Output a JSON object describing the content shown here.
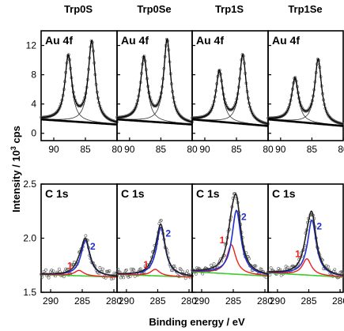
{
  "figure": {
    "columns": [
      "Trp0S",
      "Trp0Se",
      "Trp1S",
      "Trp1Se"
    ],
    "ylabel_main": "Intensity / 10",
    "ylabel_sup": "3",
    "ylabel_unit": " cps",
    "xlabel": "Binding energy / eV"
  },
  "chart_data": [
    {
      "type": "line",
      "title": "Au 4f",
      "xlabel": "Binding energy / eV",
      "ylabel": "Intensity / 10^3 cps",
      "x_reversed": true,
      "xlim": [
        80,
        92
      ],
      "ylim": [
        -1,
        14
      ],
      "xticks": [
        90,
        85,
        80
      ],
      "yticks": [
        0,
        4,
        8,
        12
      ],
      "ytick_labels": [
        "0",
        "4",
        "8",
        "12"
      ],
      "panels": [
        {
          "column": "Trp0S",
          "label": "Au 4f",
          "background": {
            "left": 1.9,
            "right": 1.2
          },
          "peaks": [
            {
              "center": 87.7,
              "height": 8.8
            },
            {
              "center": 84.0,
              "height": 11.0
            }
          ]
        },
        {
          "column": "Trp0Se",
          "label": "Au 4f",
          "background": {
            "left": 1.9,
            "right": 1.2
          },
          "peaks": [
            {
              "center": 87.7,
              "height": 8.6
            },
            {
              "center": 84.0,
              "height": 11.2
            }
          ]
        },
        {
          "column": "Trp1S",
          "label": "Au 4f",
          "background": {
            "left": 1.9,
            "right": 1.0
          },
          "peaks": [
            {
              "center": 87.7,
              "height": 6.8
            },
            {
              "center": 84.0,
              "height": 9.3
            }
          ]
        },
        {
          "column": "Trp1Se",
          "label": "Au 4f",
          "background": {
            "left": 1.9,
            "right": 1.0
          },
          "peaks": [
            {
              "center": 87.7,
              "height": 5.8
            },
            {
              "center": 84.0,
              "height": 8.7
            }
          ]
        }
      ]
    },
    {
      "type": "line",
      "title": "C 1s",
      "xlabel": "Binding energy / eV",
      "ylabel": "Intensity / 10^3 cps",
      "x_reversed": true,
      "xlim": [
        279.5,
        291.5
      ],
      "ylim": [
        1.5,
        2.5
      ],
      "xticks": [
        290,
        285,
        280
      ],
      "yticks": [
        1.5,
        2.0,
        2.5
      ],
      "ytick_labels": [
        "1.5",
        "2.0",
        "2.5"
      ],
      "legend": [
        "1",
        "2"
      ],
      "series_colors": {
        "total": "#222222",
        "component1": "#e8231e",
        "component2": "#1f2fd0",
        "background": "#3bcc2c"
      },
      "panels": [
        {
          "column": "Trp0S",
          "label": "C 1s",
          "background": {
            "left": 1.665,
            "right": 1.64
          },
          "components": [
            {
              "name": "1",
              "center": 285.5,
              "height": 0.05
            },
            {
              "name": "2",
              "center": 284.5,
              "height": 0.33
            }
          ]
        },
        {
          "column": "Trp0Se",
          "label": "C 1s",
          "background": {
            "left": 1.665,
            "right": 1.64
          },
          "components": [
            {
              "name": "1",
              "center": 285.4,
              "height": 0.06
            },
            {
              "name": "2",
              "center": 284.5,
              "height": 0.45
            }
          ]
        },
        {
          "column": "Trp1S",
          "label": "C 1s",
          "background": {
            "left": 1.69,
            "right": 1.65
          },
          "components": [
            {
              "name": "1",
              "center": 285.3,
              "height": 0.27
            },
            {
              "name": "2",
              "center": 284.5,
              "height": 0.59
            }
          ]
        },
        {
          "column": "Trp1Se",
          "label": "C 1s",
          "background": {
            "left": 1.68,
            "right": 1.64
          },
          "components": [
            {
              "name": "1",
              "center": 285.3,
              "height": 0.15
            },
            {
              "name": "2",
              "center": 284.5,
              "height": 0.51
            }
          ]
        }
      ]
    }
  ]
}
